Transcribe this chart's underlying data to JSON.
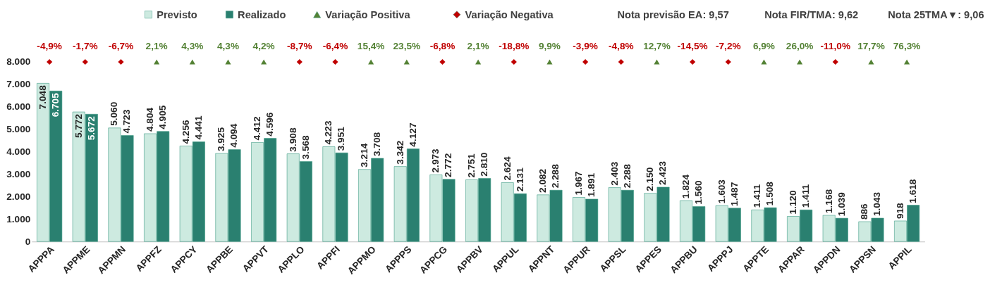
{
  "chart_data": {
    "type": "bar",
    "categories": [
      "APPPA",
      "APPME",
      "APPMN",
      "APPFZ",
      "APPCY",
      "APPBE",
      "APPVT",
      "APPLO",
      "APPFI",
      "APPMO",
      "APPPS",
      "APPCG",
      "APPBV",
      "APPUL",
      "APPNT",
      "APPUR",
      "APPSL",
      "APPES",
      "APPBU",
      "APPPJ",
      "APPTE",
      "APPAR",
      "APPDN",
      "APPSN",
      "APPIL"
    ],
    "series": [
      {
        "name": "Previsto",
        "color": "#cdeae0",
        "values": [
          7048,
          5772,
          5060,
          4804,
          4256,
          3925,
          4412,
          3908,
          4223,
          3214,
          3342,
          2973,
          2751,
          2624,
          2082,
          1967,
          2403,
          2150,
          1824,
          1603,
          1411,
          1120,
          1168,
          886,
          918
        ],
        "value_labels": [
          "7.048",
          "5.772",
          "5.060",
          "4.804",
          "4.256",
          "3.925",
          "4.412",
          "3.908",
          "4.223",
          "3.214",
          "3.342",
          "2.973",
          "2.751",
          "2.624",
          "2.082",
          "1.967",
          "2.403",
          "2.150",
          "1.824",
          "1.603",
          "1.411",
          "1.120",
          "1.168",
          "886",
          "918"
        ]
      },
      {
        "name": "Realizado",
        "color": "#2a8070",
        "values": [
          6705,
          5672,
          4723,
          4905,
          4441,
          4094,
          4596,
          3568,
          3951,
          3708,
          4127,
          2772,
          2810,
          2131,
          2288,
          1891,
          2288,
          2423,
          1560,
          1487,
          1508,
          1411,
          1039,
          1043,
          1618
        ],
        "value_labels": [
          "6.705",
          "5.672",
          "4.723",
          "4.905",
          "4.441",
          "4.094",
          "4.596",
          "3.568",
          "3.951",
          "3.708",
          "4.127",
          "2.772",
          "2.810",
          "2.131",
          "2.288",
          "1.891",
          "2.288",
          "2.423",
          "1.560",
          "1.487",
          "1.508",
          "1.411",
          "1.039",
          "1.043",
          "1.618"
        ]
      },
      {
        "name": "Variação Positiva",
        "type": "scatter",
        "marker": "triangle",
        "color": "#548235",
        "values": [
          null,
          null,
          null,
          8000,
          8000,
          8000,
          8000,
          null,
          null,
          8000,
          8000,
          null,
          8000,
          null,
          8000,
          null,
          null,
          8000,
          null,
          null,
          8000,
          8000,
          null,
          8000,
          8000
        ]
      },
      {
        "name": "Variação Negativa",
        "type": "scatter",
        "marker": "diamond",
        "color": "#c00000",
        "values": [
          8000,
          8000,
          8000,
          null,
          null,
          null,
          null,
          8000,
          8000,
          null,
          null,
          8000,
          null,
          8000,
          null,
          8000,
          8000,
          null,
          8000,
          8000,
          null,
          null,
          8000,
          null,
          null
        ]
      }
    ],
    "ylim": [
      0,
      8000
    ],
    "yticks": [
      {
        "value": 0,
        "label": "0"
      },
      {
        "value": 1000,
        "label": "1.000"
      },
      {
        "value": 2000,
        "label": "2.000"
      },
      {
        "value": 3000,
        "label": "3.000"
      },
      {
        "value": 4000,
        "label": "4.000"
      },
      {
        "value": 5000,
        "label": "5.000"
      },
      {
        "value": 6000,
        "label": "6.000"
      },
      {
        "value": 7000,
        "label": "7.000"
      },
      {
        "value": 8000,
        "label": "8.000"
      }
    ],
    "grid": false,
    "legend": "top",
    "annotations": [
      "Nota previsão EA: 9,57",
      "Nota FIR/TMA: 9,62",
      "Nota 25TMA▼: 9,06",
      {
        "text": "-4,9%",
        "x": "APPPA",
        "y": 8000
      },
      {
        "text": "-1,7%",
        "x": "APPME",
        "y": 8000
      },
      {
        "text": "-6,7%",
        "x": "APPMN",
        "y": 8000
      },
      {
        "text": "2,1%",
        "x": "APPFZ",
        "y": 8000
      },
      {
        "text": "4,3%",
        "x": "APPCY",
        "y": 8000
      },
      {
        "text": "4,3%",
        "x": "APPBE",
        "y": 8000
      },
      {
        "text": "4,2%",
        "x": "APPVT",
        "y": 8000
      },
      {
        "text": "-8,7%",
        "x": "APPLO",
        "y": 8000
      },
      {
        "text": "-6,4%",
        "x": "APPFI",
        "y": 8000
      },
      {
        "text": "15,4%",
        "x": "APPMO",
        "y": 8000
      },
      {
        "text": "23,5%",
        "x": "APPPS",
        "y": 8000
      },
      {
        "text": "-6,8%",
        "x": "APPCG",
        "y": 8000
      },
      {
        "text": "2,1%",
        "x": "APPBV",
        "y": 8000
      },
      {
        "text": "-18,8%",
        "x": "APPUL",
        "y": 8000
      },
      {
        "text": "9,9%",
        "x": "APPNT",
        "y": 8000
      },
      {
        "text": "-3,9%",
        "x": "APPUR",
        "y": 8000
      },
      {
        "text": "-4,8%",
        "x": "APPSL",
        "y": 8000
      },
      {
        "text": "12,7%",
        "x": "APPES",
        "y": 8000
      },
      {
        "text": "-14,5%",
        "x": "APPBU",
        "y": 8000
      },
      {
        "text": "-7,2%",
        "x": "APPPJ",
        "y": 8000
      },
      {
        "text": "6,9%",
        "x": "APPTE",
        "y": 8000
      },
      {
        "text": "26,0%",
        "x": "APPAR",
        "y": 8000
      },
      {
        "text": "-11,0%",
        "x": "APPDN",
        "y": 8000
      },
      {
        "text": "17,7%",
        "x": "APPSN",
        "y": 8000
      },
      {
        "text": "76,3%",
        "x": "APPIL",
        "y": 8000
      }
    ]
  }
}
